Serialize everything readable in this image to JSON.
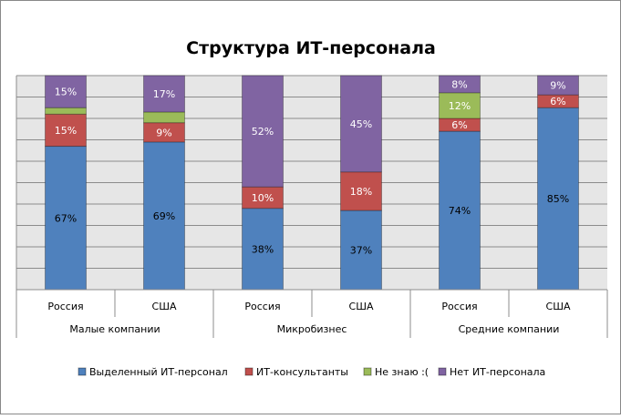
{
  "chart_data": {
    "type": "stacked-bar-100",
    "title": "Структура ИТ-персонала",
    "groups": [
      "Малые компании",
      "Микробизнес",
      "Средние компании"
    ],
    "categories": [
      "Россия",
      "США",
      "Россия",
      "США",
      "Россия",
      "США"
    ],
    "ylim": [
      0,
      100
    ],
    "grid": true,
    "legend_position": "bottom",
    "series": [
      {
        "name": "Выделенный ИТ-персонал",
        "color": "#4f81bd",
        "values": [
          67,
          69,
          38,
          37,
          74,
          85
        ],
        "labels": [
          "67%",
          "69%",
          "38%",
          "37%",
          "74%",
          "85%"
        ]
      },
      {
        "name": "ИТ-консультанты",
        "color": "#c0504d",
        "values": [
          15,
          9,
          10,
          18,
          6,
          6
        ],
        "labels": [
          "15%",
          "9%",
          "10%",
          "18%",
          "6%",
          "6%"
        ]
      },
      {
        "name": "Не знаю :(",
        "color": "#9bbb59",
        "values": [
          3,
          5,
          0,
          0,
          12,
          0
        ],
        "labels": [
          "",
          "",
          "",
          "",
          "12%",
          ""
        ]
      },
      {
        "name": "Нет ИТ-персонала",
        "color": "#8064a2",
        "values": [
          15,
          17,
          52,
          45,
          8,
          9
        ],
        "labels": [
          "15%",
          "17%",
          "52%",
          "45%",
          "8%",
          "9%"
        ]
      }
    ]
  }
}
